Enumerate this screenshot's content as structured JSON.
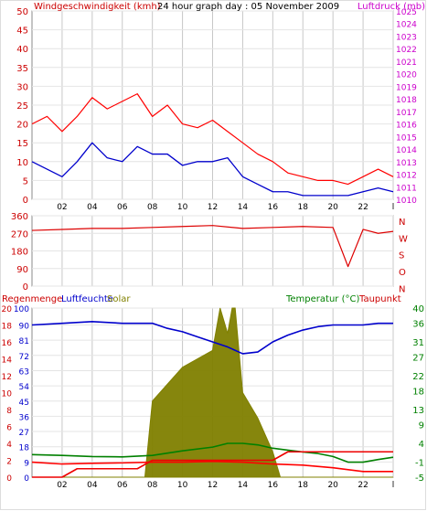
{
  "colors": {
    "wind_gust": "#ff0000",
    "wind_avg": "#0000cc",
    "pressure": "#cc00cc",
    "direction": "#dd0000",
    "rain": "#ee0000",
    "humidity": "#0000cc",
    "solar": "#808000",
    "temperature": "#008000",
    "dewpoint": "#ff0000",
    "grid": "#c8c8c8",
    "frame": "#888888",
    "axis_text": "#000000"
  },
  "chart_data": [
    {
      "type": "line",
      "panel": "wind-pressure",
      "header": {
        "left": "Windgeschwindigkeit (kmh)",
        "center": "24 hour graph day : 05 November 2009",
        "right": "Luftdruck (mb)"
      },
      "x_tick_labels": [
        "02",
        "04",
        "06",
        "08",
        "10",
        "12",
        "14",
        "16",
        "18",
        "20",
        "22",
        "l"
      ],
      "x_ticks": [
        2,
        4,
        6,
        8,
        10,
        12,
        14,
        16,
        18,
        20,
        22,
        24
      ],
      "xlim": [
        0,
        24
      ],
      "y_left": {
        "ticks": [
          0,
          5,
          10,
          15,
          20,
          25,
          30,
          35,
          40,
          45,
          50
        ],
        "labels": [
          "0",
          "5",
          "10",
          "15",
          "20",
          "25",
          "30",
          "35",
          "40",
          "45",
          "50"
        ],
        "range": [
          0,
          50
        ]
      },
      "y_right": {
        "ticks": [
          1010,
          1011,
          1012,
          1013,
          1014,
          1015,
          1016,
          1017,
          1018,
          1019,
          1020,
          1021,
          1022,
          1023,
          1024,
          1025
        ],
        "labels": [
          "1010",
          "1011",
          "1012",
          "1013",
          "1014",
          "1015",
          "1016",
          "1017",
          "1018",
          "1019",
          "1020",
          "1021",
          "1022",
          "1023",
          "1024",
          "1025"
        ],
        "range": [
          1010,
          1025
        ]
      },
      "series": [
        {
          "name": "Windgeschwindigkeit",
          "style": "gust",
          "x": [
            0,
            1,
            2,
            3,
            4,
            5,
            6,
            7,
            8,
            9,
            10,
            11,
            12,
            13,
            14,
            15,
            16,
            17,
            18,
            19,
            20,
            21,
            22,
            23,
            24
          ],
          "y": [
            20,
            22,
            18,
            22,
            27,
            24,
            26,
            28,
            22,
            25,
            20,
            19,
            21,
            18,
            15,
            12,
            10,
            7,
            6,
            5,
            5,
            4,
            6,
            8,
            6
          ]
        },
        {
          "name": "Windgeschwindigkeit",
          "style": "avg",
          "x": [
            0,
            1,
            2,
            3,
            4,
            5,
            6,
            7,
            8,
            9,
            10,
            11,
            12,
            13,
            14,
            15,
            16,
            17,
            18,
            19,
            20,
            21,
            22,
            23,
            24
          ],
          "y": [
            10,
            8,
            6,
            10,
            15,
            11,
            10,
            14,
            12,
            12,
            9,
            10,
            10,
            11,
            6,
            4,
            2,
            2,
            1,
            1,
            1,
            1,
            2,
            3,
            2
          ]
        }
      ]
    },
    {
      "type": "line",
      "panel": "wind-direction",
      "x_ticks": [
        2,
        4,
        6,
        8,
        10,
        12,
        14,
        16,
        18,
        20,
        22,
        24
      ],
      "xlim": [
        0,
        24
      ],
      "y_left": {
        "ticks": [
          0,
          90,
          180,
          270,
          360
        ],
        "labels": [
          "0",
          "90",
          "180",
          "270",
          "360"
        ],
        "range": [
          0,
          360
        ]
      },
      "y_right": {
        "labels": [
          "N",
          "W",
          "S",
          "O",
          "N"
        ]
      },
      "series": [
        {
          "name": "Windrichtung",
          "x": [
            0,
            2,
            4,
            6,
            8,
            10,
            12,
            14,
            16,
            18,
            20,
            21,
            22,
            23,
            24
          ],
          "y": [
            285,
            290,
            295,
            295,
            300,
            305,
            310,
            295,
            300,
            305,
            300,
            100,
            290,
            270,
            280
          ]
        }
      ]
    },
    {
      "type": "area",
      "panel": "rain-humidity-solar-temperature",
      "labels": {
        "rain": "Regenmenge",
        "humidity": "Luftfeuchte",
        "solar": "Solar",
        "temperature": "Temperatur (°C)",
        "dewpoint": "Taupunkt"
      },
      "x_tick_labels": [
        "02",
        "04",
        "06",
        "08",
        "10",
        "12",
        "14",
        "16",
        "18",
        "20",
        "22",
        "l"
      ],
      "x_ticks": [
        2,
        4,
        6,
        8,
        10,
        12,
        14,
        16,
        18,
        20,
        22,
        24
      ],
      "xlim": [
        0,
        24
      ],
      "y_left_rain": {
        "labels": [
          "0",
          "2",
          "4",
          "6",
          "8",
          "10",
          "12",
          "14",
          "16",
          "18",
          "20"
        ],
        "ticks": [
          0,
          2,
          4,
          6,
          8,
          10,
          12,
          14,
          16,
          18,
          20
        ],
        "range": [
          0,
          20
        ]
      },
      "y_left_humidity": {
        "labels": [
          "0",
          "9",
          "18",
          "27",
          "36",
          "45",
          "54",
          "63",
          "72",
          "81",
          "90",
          "100"
        ],
        "ticks": [
          0,
          9,
          18,
          27,
          36,
          45,
          54,
          63,
          72,
          81,
          90,
          100
        ],
        "range": [
          0,
          100
        ]
      },
      "y_right": {
        "ticks": [
          -5,
          -1,
          4,
          9,
          13,
          18,
          22,
          27,
          31,
          36,
          40
        ],
        "labels": [
          "-5",
          "-1",
          "4",
          "9",
          "13",
          "18",
          "22",
          "27",
          "31",
          "36",
          "40"
        ],
        "range": [
          -5,
          40
        ]
      },
      "series": [
        {
          "name": "Luftfeuchte",
          "x": [
            0,
            2,
            4,
            6,
            8,
            9,
            10,
            11,
            12,
            13,
            14,
            15,
            16,
            17,
            18,
            19,
            20,
            21,
            22,
            23,
            24
          ],
          "y": [
            90,
            91,
            92,
            91,
            91,
            88,
            86,
            83,
            80,
            77,
            73,
            74,
            80,
            84,
            87,
            89,
            90,
            90,
            90,
            91,
            91
          ]
        },
        {
          "name": "Solar",
          "x": [
            0,
            7.5,
            8,
            9,
            10,
            11,
            12,
            12.5,
            13,
            13.3,
            13.5,
            14,
            15,
            16,
            16.5,
            17,
            24
          ],
          "y": [
            0,
            0,
            45,
            55,
            65,
            70,
            75,
            100,
            85,
            100,
            100,
            50,
            35,
            15,
            0,
            0,
            0
          ]
        },
        {
          "name": "Temperatur (°C)",
          "x": [
            0,
            2,
            4,
            6,
            8,
            10,
            12,
            13,
            14,
            15,
            16,
            17,
            18,
            19,
            20,
            21,
            22,
            23,
            24
          ],
          "y": [
            1,
            0.8,
            0.5,
            0.4,
            0.8,
            2,
            3,
            4,
            4,
            3.6,
            2.7,
            2.2,
            1.7,
            1.3,
            0.5,
            -1,
            -1,
            -0.3,
            0.3
          ]
        },
        {
          "name": "Taupunkt",
          "x": [
            0,
            2,
            4,
            6,
            8,
            10,
            12,
            14,
            16,
            18,
            20,
            22,
            23,
            24
          ],
          "y": [
            -1,
            -1.5,
            -1.3,
            -1.2,
            -1,
            -1,
            -0.8,
            -1,
            -1.5,
            -1.8,
            -2.5,
            -3.5,
            -3.5,
            -3.5
          ]
        },
        {
          "name": "Regenmenge",
          "x": [
            0,
            2,
            3,
            4,
            6,
            7,
            8,
            10,
            12,
            14,
            16,
            17,
            18,
            20,
            22,
            24
          ],
          "y": [
            0,
            0,
            1,
            1,
            1,
            1,
            2,
            2,
            2,
            2,
            2,
            3,
            3,
            3,
            3,
            3
          ]
        }
      ]
    }
  ]
}
